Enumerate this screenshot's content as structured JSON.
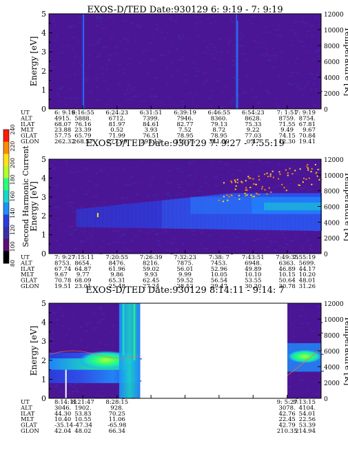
{
  "chart_data": {
    "type": "heatmap",
    "colorbar": {
      "label": "Second Harmonic Current",
      "ticks": [
        "80",
        "100",
        "120",
        "140",
        "160",
        "180",
        "200",
        "220",
        "240"
      ],
      "colors": [
        "#000000",
        "#5a0e77",
        "#3b2ea8",
        "#2a3ee0",
        "#1e8fff",
        "#19d6c8",
        "#2bff7a",
        "#b4ff2a",
        "#ffe31a",
        "#ff8c00",
        "#ff1a00"
      ]
    },
    "panels": [
      {
        "title": "EXOS-D/TED   Date:930129  6: 9:19 - 7: 9:19",
        "ylabel_left": "Energy [eV]",
        "ylabel_right": "Temperature [K]",
        "yticks_left": [
          "0",
          "1",
          "2",
          "3",
          "4",
          "5"
        ],
        "yticks_right": [
          "0",
          "2000",
          "4000",
          "6000",
          "8000",
          "10000",
          "12000"
        ],
        "ylim_left": [
          0,
          5
        ],
        "ylim_right": [
          0,
          12000
        ],
        "data_segments": [
          [
            0,
            1
          ]
        ],
        "orbit_rows": [
          {
            "label": "UT",
            "values": [
              "6: 9:19",
              "6:16:55",
              "6:24:23",
              "6:31:51",
              "6:39:19",
              "6:46:55",
              "6:54:23",
              "7: 1:51",
              "7: 9:19"
            ]
          },
          {
            "label": "ALT",
            "values": [
              "4915.",
              "5888.",
              "6712.",
              "7399.",
              "7946.",
              "8360.",
              "8628.",
              "8759.",
              "8754."
            ]
          },
          {
            "label": "ILAT",
            "values": [
              "68.07",
              "76.16",
              "81.97",
              "84.61",
              "82.77",
              "79.13",
              "75.33",
              "71.55",
              "67.81"
            ]
          },
          {
            "label": "MLT",
            "values": [
              "23.88",
              "23.39",
              "0.52",
              "3.93",
              "7.52",
              "8.72",
              "9.22",
              "9.49",
              "9.67"
            ]
          },
          {
            "label": "GLAT",
            "values": [
              "57.75",
              "65.79",
              "71.99",
              "76.51",
              "78.95",
              "78.95",
              "77.03",
              "74.15",
              "70.84"
            ]
          },
          {
            "label": "GLON",
            "values": [
              "262.32",
              "268.57",
              "277.99",
              "293.13",
              "315.75",
              "341.39",
              "0.47",
              "12.30",
              "19.41"
            ]
          }
        ]
      },
      {
        "title": "EXOS-D/TED   Date:930129  7: 9:27 - 7:55:19",
        "ylabel_left": "Energy [eV]",
        "ylabel_right": "Temperature [K]",
        "yticks_left": [
          "0",
          "1",
          "2",
          "3",
          "4",
          "5"
        ],
        "yticks_right": [
          "0",
          "2000",
          "4000",
          "6000",
          "8000",
          "10000",
          "12000"
        ],
        "ylim_left": [
          0,
          5
        ],
        "ylim_right": [
          0,
          12000
        ],
        "data_segments": [
          [
            0,
            1
          ]
        ],
        "orbit_rows": [
          {
            "label": "UT",
            "values": [
              "7: 9:27",
              "7:15:11",
              "7:20:55",
              "7:26:39",
              "7:32:23",
              "7:38: 7",
              "7:43:51",
              "7:49:35",
              "7:55:19"
            ]
          },
          {
            "label": "ALT",
            "values": [
              "8753.",
              "8654.",
              "8476.",
              "8216.",
              "7875.",
              "7453.",
              "6948.",
              "6363.",
              "5699."
            ]
          },
          {
            "label": "ILAT",
            "values": [
              "67.74",
              "64.87",
              "61.96",
              "59.02",
              "56.01",
              "52.96",
              "49.89",
              "46.89",
              "44.17"
            ]
          },
          {
            "label": "MLT",
            "values": [
              "9.67",
              "9.77",
              "9.86",
              "9.93",
              "9.99",
              "10.05",
              "10.10",
              "10.15",
              "10.20"
            ]
          },
          {
            "label": "GLAT",
            "values": [
              "70.78",
              "68.09",
              "65.31",
              "62.45",
              "59.52",
              "56.54",
              "53.55",
              "50.64",
              "48.01"
            ]
          },
          {
            "label": "GLON",
            "values": [
              "19.51",
              "23.01",
              "25.48",
              "27.24",
              "28.52",
              "29.47",
              "30.20",
              "30.78",
              "31.26"
            ]
          }
        ]
      },
      {
        "title": "EXOS-D/TED   Date:930129  8:14:11 - 9:14: 7",
        "ylabel_left": "Energy [eV]",
        "ylabel_right": "Temperature [K]",
        "yticks_left": [
          "0",
          "1",
          "2",
          "3",
          "4",
          "5"
        ],
        "yticks_right": [
          "0",
          "2000",
          "4000",
          "6000",
          "8000",
          "10000",
          "12000"
        ],
        "ylim_left": [
          0,
          5
        ],
        "ylim_right": [
          0,
          12000
        ],
        "data_segments": [
          [
            0,
            0.335
          ],
          [
            0.876,
            1
          ]
        ],
        "orbit_rows": [
          {
            "label": "UT",
            "values": [
              "8:14:11",
              "8:21:47",
              "8:28:15",
              "",
              "",
              "",
              "",
              "9: 5:27",
              "9:13:15"
            ]
          },
          {
            "label": "ALT",
            "values": [
              "3046.",
              "1902.",
              "928.",
              "",
              "",
              "",
              "",
              "3078.",
              "4104."
            ]
          },
          {
            "label": "ILAT",
            "values": [
              "44.30",
              "53.83",
              "70.25",
              "",
              "",
              "",
              "",
              "42.76",
              "54.01"
            ]
          },
          {
            "label": "MLT",
            "values": [
              "10.40",
              "10.55",
              "11.06",
              "",
              "",
              "",
              "",
              "22.45",
              "22.56"
            ]
          },
          {
            "label": "GLAT",
            "values": [
              "-35.14",
              "-47.34",
              "-65.98",
              "",
              "",
              "",
              "",
              "42.79",
              "53.39"
            ]
          },
          {
            "label": "GLON",
            "values": [
              "42.04",
              "48.02",
              "66.34",
              "",
              "",
              "",
              "",
              "210.35",
              "214.94"
            ]
          }
        ]
      }
    ]
  }
}
